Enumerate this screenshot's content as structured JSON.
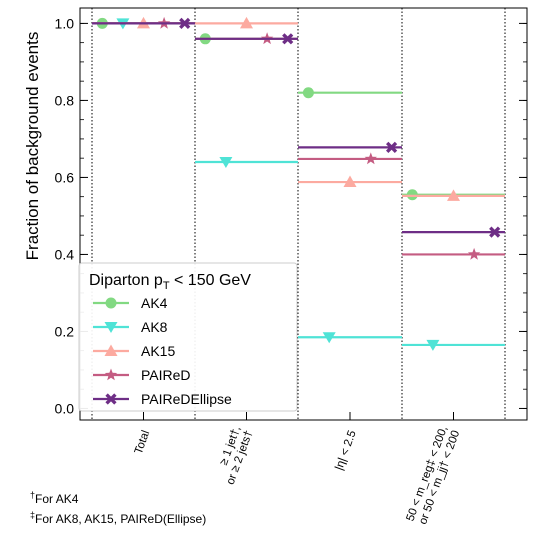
{
  "chart_data": {
    "type": "scatter",
    "title": "",
    "xlabel": "",
    "ylabel": "Fraction of background events",
    "ylim": [
      -0.03,
      1.04
    ],
    "yticks": [
      "0.0",
      "0.2",
      "0.4",
      "0.6",
      "0.8",
      "1.0"
    ],
    "categories": [
      {
        "lines": [
          "Total"
        ]
      },
      {
        "lines": [
          "≥ 1 jet†,",
          "or ≥ 2 jets†"
        ]
      },
      {
        "lines": [
          "|η| < 2.5"
        ]
      },
      {
        "lines": [
          "50 < m_reg‡ < 200,",
          "or 50 < m_jj† < 200"
        ]
      }
    ],
    "legend": {
      "title": "Diparton p",
      "title_sub": "T",
      "title_suffix": " <  150 GeV",
      "placement": "lower-left"
    },
    "series": [
      {
        "name": "AK4",
        "color": "#82d982",
        "marker": "circle",
        "values": [
          1.0,
          0.96,
          0.82,
          0.555
        ]
      },
      {
        "name": "AK8",
        "color": "#4fe3d6",
        "marker": "triangle-down",
        "values": [
          1.0,
          0.64,
          0.185,
          0.165
        ]
      },
      {
        "name": "AK15",
        "color": "#fcaaa0",
        "marker": "triangle-up",
        "values": [
          1.0,
          1.0,
          0.588,
          0.552
        ]
      },
      {
        "name": "PAIReD",
        "color": "#c45c82",
        "marker": "star",
        "values": [
          1.0,
          0.96,
          0.648,
          0.4
        ]
      },
      {
        "name": "PAIReDEllipse",
        "color": "#6e2e86",
        "marker": "x",
        "values": [
          1.0,
          0.96,
          0.678,
          0.458
        ]
      }
    ]
  },
  "footnotes": {
    "ak4_mark": "†",
    "ak4_text": "For AK4",
    "others_mark": "‡",
    "others_text": "For AK8, AK15, PAIReD(Ellipse)"
  }
}
